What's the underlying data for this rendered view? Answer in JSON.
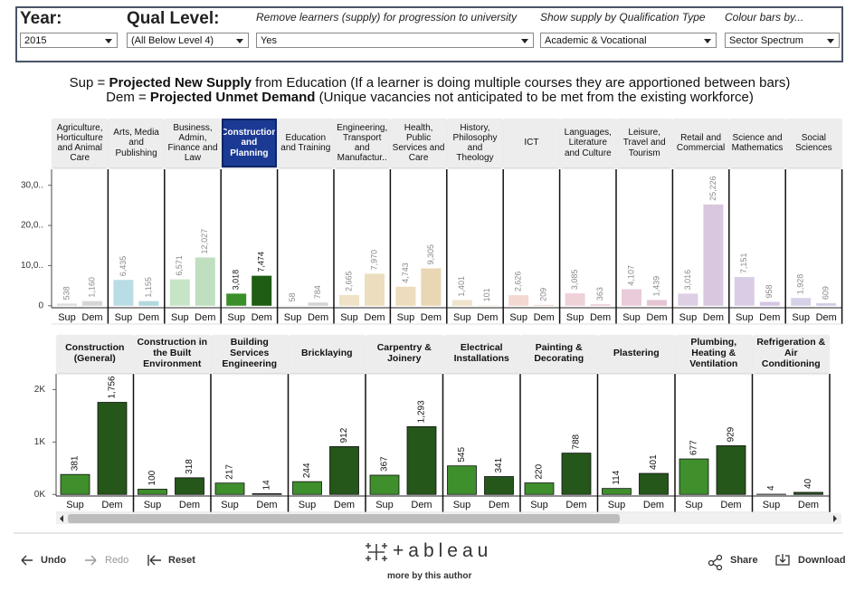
{
  "filters": [
    {
      "label": "Year:",
      "value": "2015"
    },
    {
      "label": "Qual Level:",
      "value": "(All Below Level 4)"
    },
    {
      "label": "Remove learners (supply) for progression to university",
      "value": "Yes"
    },
    {
      "label": "Show supply by Qualification Type",
      "value": "Academic & Vocational"
    },
    {
      "label": "Colour bars by...",
      "value": "Sector Spectrum"
    }
  ],
  "legend": [
    {
      "parts": [
        "Sup = ",
        "Projected New Supply",
        " from Education (If a learner is doing multiple courses they are apportioned between bars)"
      ]
    },
    {
      "parts": [
        "Dem = ",
        "Projected Unmet Demand",
        " (Unique vacancies not anticipated to be met from the existing workforce)"
      ]
    }
  ],
  "chart_data": [
    {
      "type": "bar",
      "categories": [
        "Agriculture, Horticulture and Animal Care",
        "Arts, Media and Publishing",
        "Business, Admin, Finance and Law",
        "Construction and Planning",
        "Education and Training",
        "Engineering, Transport and Manufactur..",
        "Health, Public Services and Care",
        "History, Philosophy and Theology",
        "ICT",
        "Languages, Literature and Culture",
        "Leisure, Travel and Tourism",
        "Retail and Commercial",
        "Science and Mathematics",
        "Social Sciences"
      ],
      "highlight": 3,
      "series": [
        {
          "name": "Sup",
          "colors": [
            "#dcdcdc",
            "#b9dde4",
            "#c6e4c6",
            "#3a8f2a",
            "#dadada",
            "#efe2c6",
            "#eddcbd",
            "#efe4cb",
            "#f2d8d0",
            "#eed2d8",
            "#e9cbda",
            "#ddcfe4",
            "#d9cde6",
            "#d6d1e7"
          ],
          "values": [
            538,
            6435,
            6571,
            3018,
            58,
            2665,
            4743,
            1401,
            2626,
            3085,
            4107,
            3016,
            7151,
            1928
          ],
          "value_labels": [
            "538",
            "6,435",
            "6,571",
            "3,018",
            "58",
            "2,665",
            "4,743",
            "1,401",
            "2,626",
            "3,085",
            "4,107",
            "3,016",
            "7,151",
            "1,928"
          ]
        },
        {
          "name": "Dem",
          "colors": [
            "#d5d5d5",
            "#b2d8df",
            "#c0dfc0",
            "#1f5c14",
            "#d4d4d4",
            "#ecddbe",
            "#e9d6b4",
            "#ecdfc4",
            "#efd2c9",
            "#eacbd2",
            "#e5c4d4",
            "#d8c7df",
            "#d4c6e2",
            "#d1cbe3"
          ],
          "values": [
            1160,
            1155,
            12027,
            7474,
            784,
            7970,
            9305,
            101,
            209,
            363,
            1439,
            25226,
            958,
            609
          ],
          "value_labels": [
            "1,160",
            "1,155",
            "12,027",
            "7,474",
            "784",
            "7,970",
            "9,305",
            "101",
            "209",
            "363",
            "1,439",
            "25,226",
            "958",
            "609"
          ]
        }
      ],
      "ylim": [
        -500,
        34000
      ],
      "yticks": [
        0,
        {
          "value": 10000,
          "label": "10,0.."
        },
        {
          "value": 20000,
          "label": "20,0.."
        },
        {
          "value": 30000,
          "label": "30,0.."
        }
      ]
    },
    {
      "type": "bar",
      "categories": [
        "Construction (General)",
        "Construction in the Built Environment",
        "Building Services Engineering",
        "Bricklaying",
        "Carpentry & Joinery",
        "Electrical Installations",
        "Painting & Decorating",
        "Plastering",
        "Plumbing, Heating & Ventilation",
        "Refrigeration & Air Conditioning"
      ],
      "series": [
        {
          "name": "Sup",
          "color": "#3f8f2c",
          "values": [
            381,
            100,
            217,
            244,
            367,
            545,
            220,
            114,
            677,
            4
          ],
          "value_labels": [
            "381",
            "100",
            "217",
            "244",
            "367",
            "545",
            "220",
            "114",
            "677",
            "4"
          ]
        },
        {
          "name": "Dem",
          "color": "#25561a",
          "values": [
            1756,
            318,
            14,
            912,
            1293,
            341,
            788,
            401,
            929,
            40
          ],
          "value_labels": [
            "1,756",
            "318",
            "14",
            "912",
            "1,293",
            "341",
            "788",
            "401",
            "929",
            "40"
          ]
        }
      ],
      "ylim": [
        -30,
        2300
      ],
      "yticks": [
        {
          "value": 0,
          "label": "0K"
        },
        {
          "value": 1000,
          "label": "1K"
        },
        {
          "value": 2000,
          "label": "2K"
        }
      ]
    }
  ],
  "footer": {
    "undo": "Undo",
    "redo": "Redo",
    "reset": "Reset",
    "logo": "+ableau",
    "author": "more by this author",
    "share": "Share",
    "download": "Download"
  }
}
